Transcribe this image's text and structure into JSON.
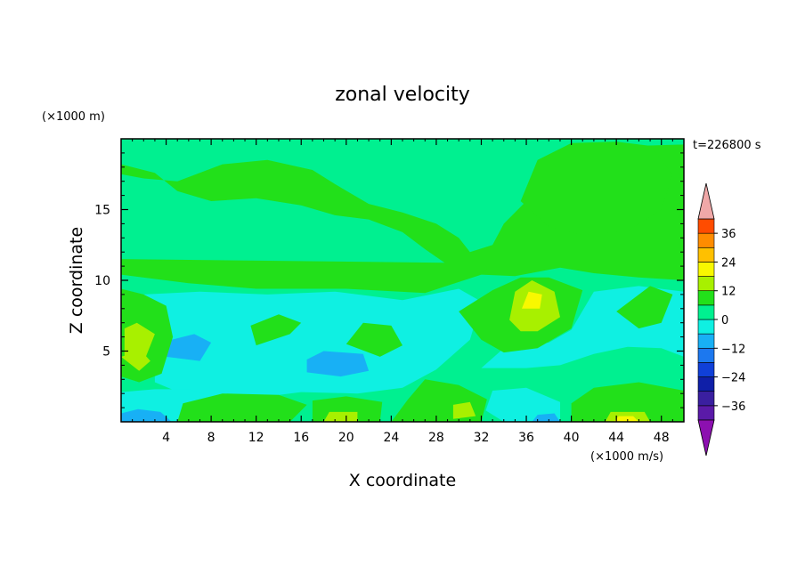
{
  "chart_data": {
    "type": "heatmap",
    "title": "zonal velocity",
    "xlabel": "X coordinate",
    "ylabel": "Z coordinate",
    "x_unit_label": "(×1000 m/s)",
    "y_unit_label": "(×1000 m)",
    "time_label": "t=226800 s",
    "xlim": [
      0,
      50
    ],
    "ylim": [
      0,
      20
    ],
    "x_ticks": [
      4,
      8,
      12,
      16,
      20,
      24,
      28,
      32,
      36,
      40,
      44,
      48
    ],
    "y_ticks": [
      5,
      10,
      15
    ],
    "colorbar": {
      "labels": [
        "36",
        "24",
        "12",
        "0",
        "-12",
        "-24",
        "-36"
      ],
      "label_values": [
        36,
        24,
        12,
        0,
        -12,
        -24,
        -36
      ],
      "levels": [
        -42,
        -36,
        -30,
        -24,
        -18,
        -12,
        -6,
        0,
        6,
        12,
        18,
        24,
        30,
        36,
        42
      ],
      "colors": [
        "#5a1aa8",
        "#3a1fa0",
        "#0f1fa8",
        "#1040d8",
        "#1c78ef",
        "#18b0f5",
        "#0ff0e2",
        "#00f090",
        "#22e01a",
        "#a8f000",
        "#f8f800",
        "#ffc000",
        "#ff8c00",
        "#ff4c00",
        "#ff1a10"
      ],
      "extend_max_color": "#f0a8a8",
      "extend_min_color": "#8c10b0"
    },
    "field_note": "Zonal velocity field; mostly 0 to +6 in upper domain, weak negatives (-6 to -12) in lower domain, positive maxima near x=36, z=7 and near x=2-4, z=4-7."
  }
}
